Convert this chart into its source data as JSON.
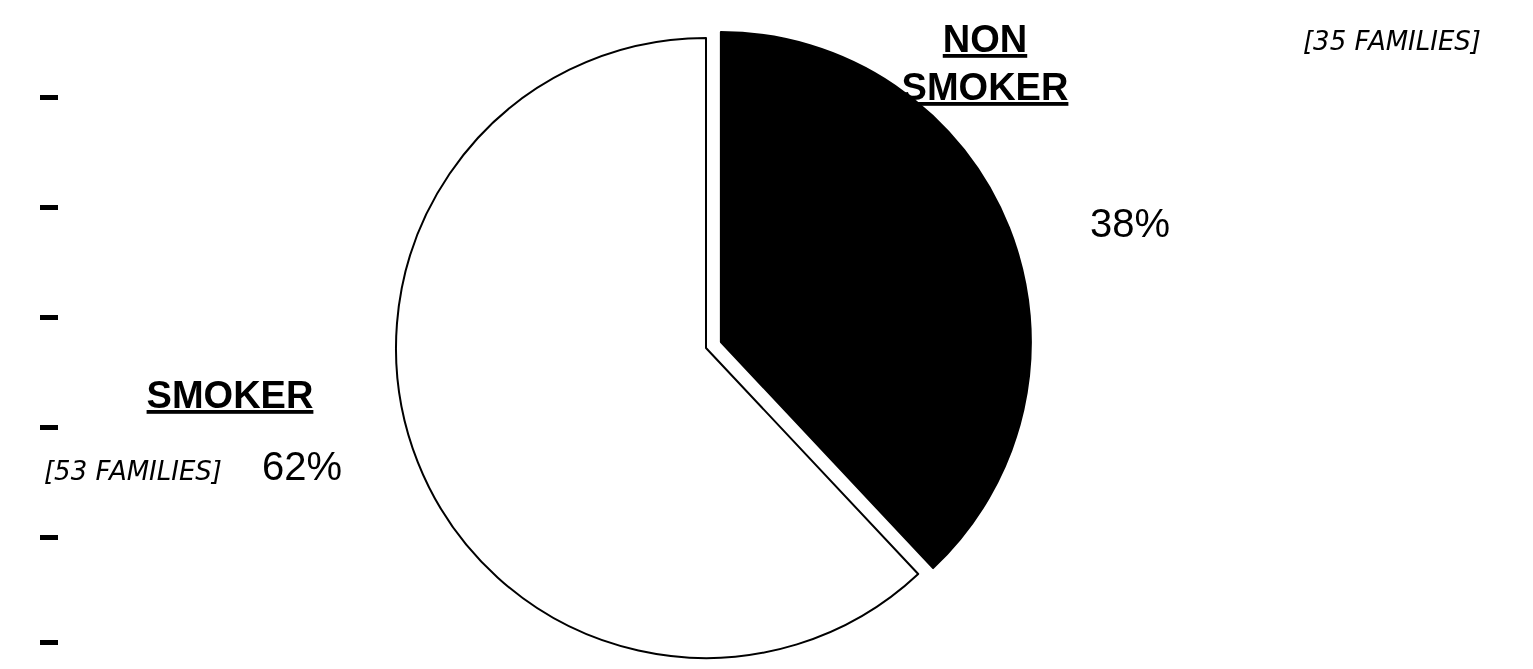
{
  "chart_data": {
    "type": "pie",
    "categories": [
      "NON SMOKER",
      "SMOKER"
    ],
    "values": [
      38,
      62
    ],
    "colors": [
      "#000000",
      "#ffffff"
    ],
    "value_labels": [
      "38%",
      "62%"
    ],
    "annotations": [
      "[35 FAMILIES]",
      "[53 FAMILIES]"
    ]
  }
}
